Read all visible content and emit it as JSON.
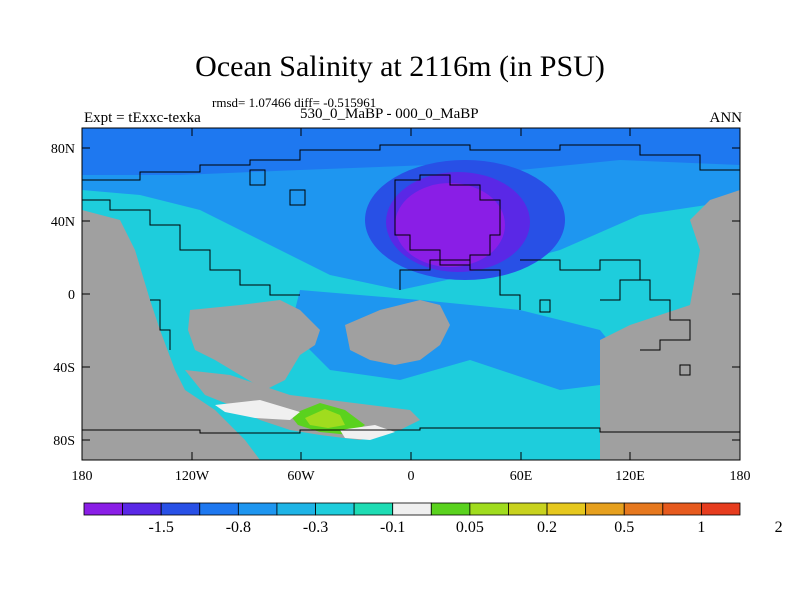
{
  "title": "Ocean Salinity at 2116m (in PSU)",
  "stats_line": "rmsd= 1.07466 diff= -0.515961",
  "experiment_label": "Expt = tExxc-texka",
  "comparison_label": "530_0_MaBP - 000_0_MaBP",
  "season_label": "ANN",
  "lat_ticks": [
    "80N",
    "40N",
    "0",
    "40S",
    "80S"
  ],
  "lon_ticks": [
    "180",
    "120W",
    "60W",
    "0",
    "60E",
    "120E",
    "180"
  ],
  "colorbar": {
    "labels": [
      "-1.5",
      "-0.8",
      "-0.3",
      "-0.1",
      "0.05",
      "0.2",
      "0.5",
      "1",
      "2"
    ],
    "colors": [
      "#8a1ee6",
      "#5a28e6",
      "#2850e6",
      "#1e78f0",
      "#1e96f0",
      "#1eb4e6",
      "#1ecddc",
      "#1edcb4",
      "#f0f0f0",
      "#5ad21e",
      "#a0dc1e",
      "#c8d21e",
      "#e6c81e",
      "#e6a01e",
      "#e6781e",
      "#e65a1e",
      "#e63c1e"
    ]
  },
  "land_color": "#a0a0a0",
  "ocean_colors": {
    "base": "#1ecddc",
    "blue": "#1e96f0",
    "deep_blue": "#1e78f0",
    "anomaly_1": "#2850e6",
    "anomaly_2": "#5a28e6",
    "anomaly_3": "#8a1ee6",
    "green": "#5ad21e",
    "yellow_green": "#a0dc1e",
    "near_zero": "#f0f0f0"
  }
}
